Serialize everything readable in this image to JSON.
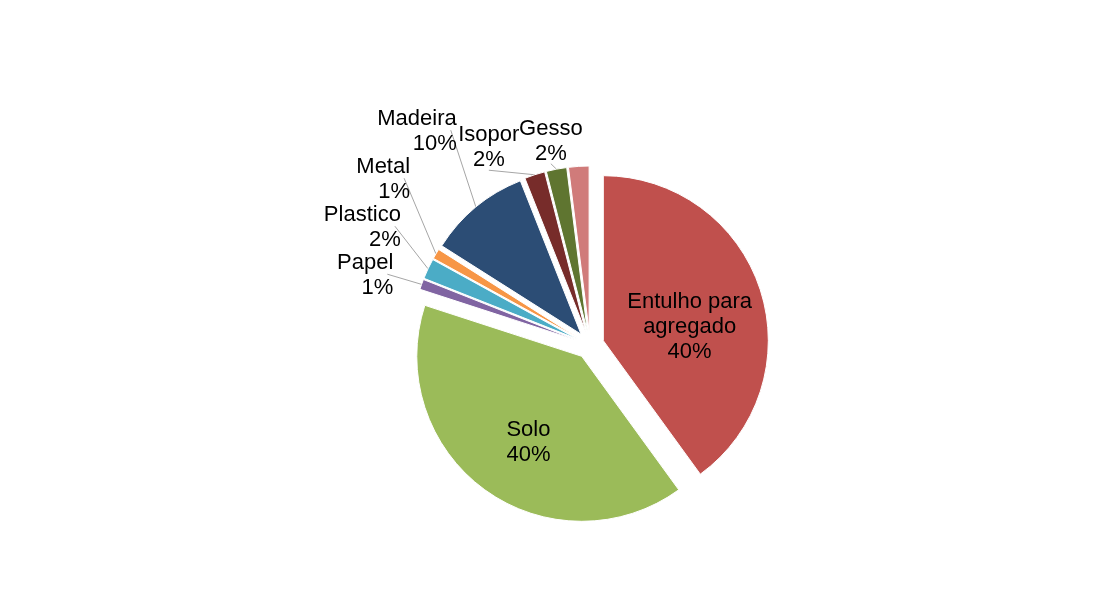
{
  "chart_data": {
    "type": "pie",
    "categories": [
      "Entulho para agregado",
      "Solo",
      "Papel",
      "Plastico",
      "Metal",
      "Madeira",
      "Isopor",
      "Gesso",
      null
    ],
    "values": [
      40,
      40,
      1,
      2,
      1,
      10,
      2,
      2,
      2
    ],
    "colors": [
      "#c0504d",
      "#9bbb59",
      "#8064a2",
      "#4bacc6",
      "#f79646",
      "#2c4d75",
      "#772c2a",
      "#5f7530",
      "#d07b7a"
    ],
    "value_labels": [
      "40%",
      "40%",
      "1%",
      "2%",
      "1%",
      "10%",
      "2%",
      "2%",
      null
    ]
  }
}
